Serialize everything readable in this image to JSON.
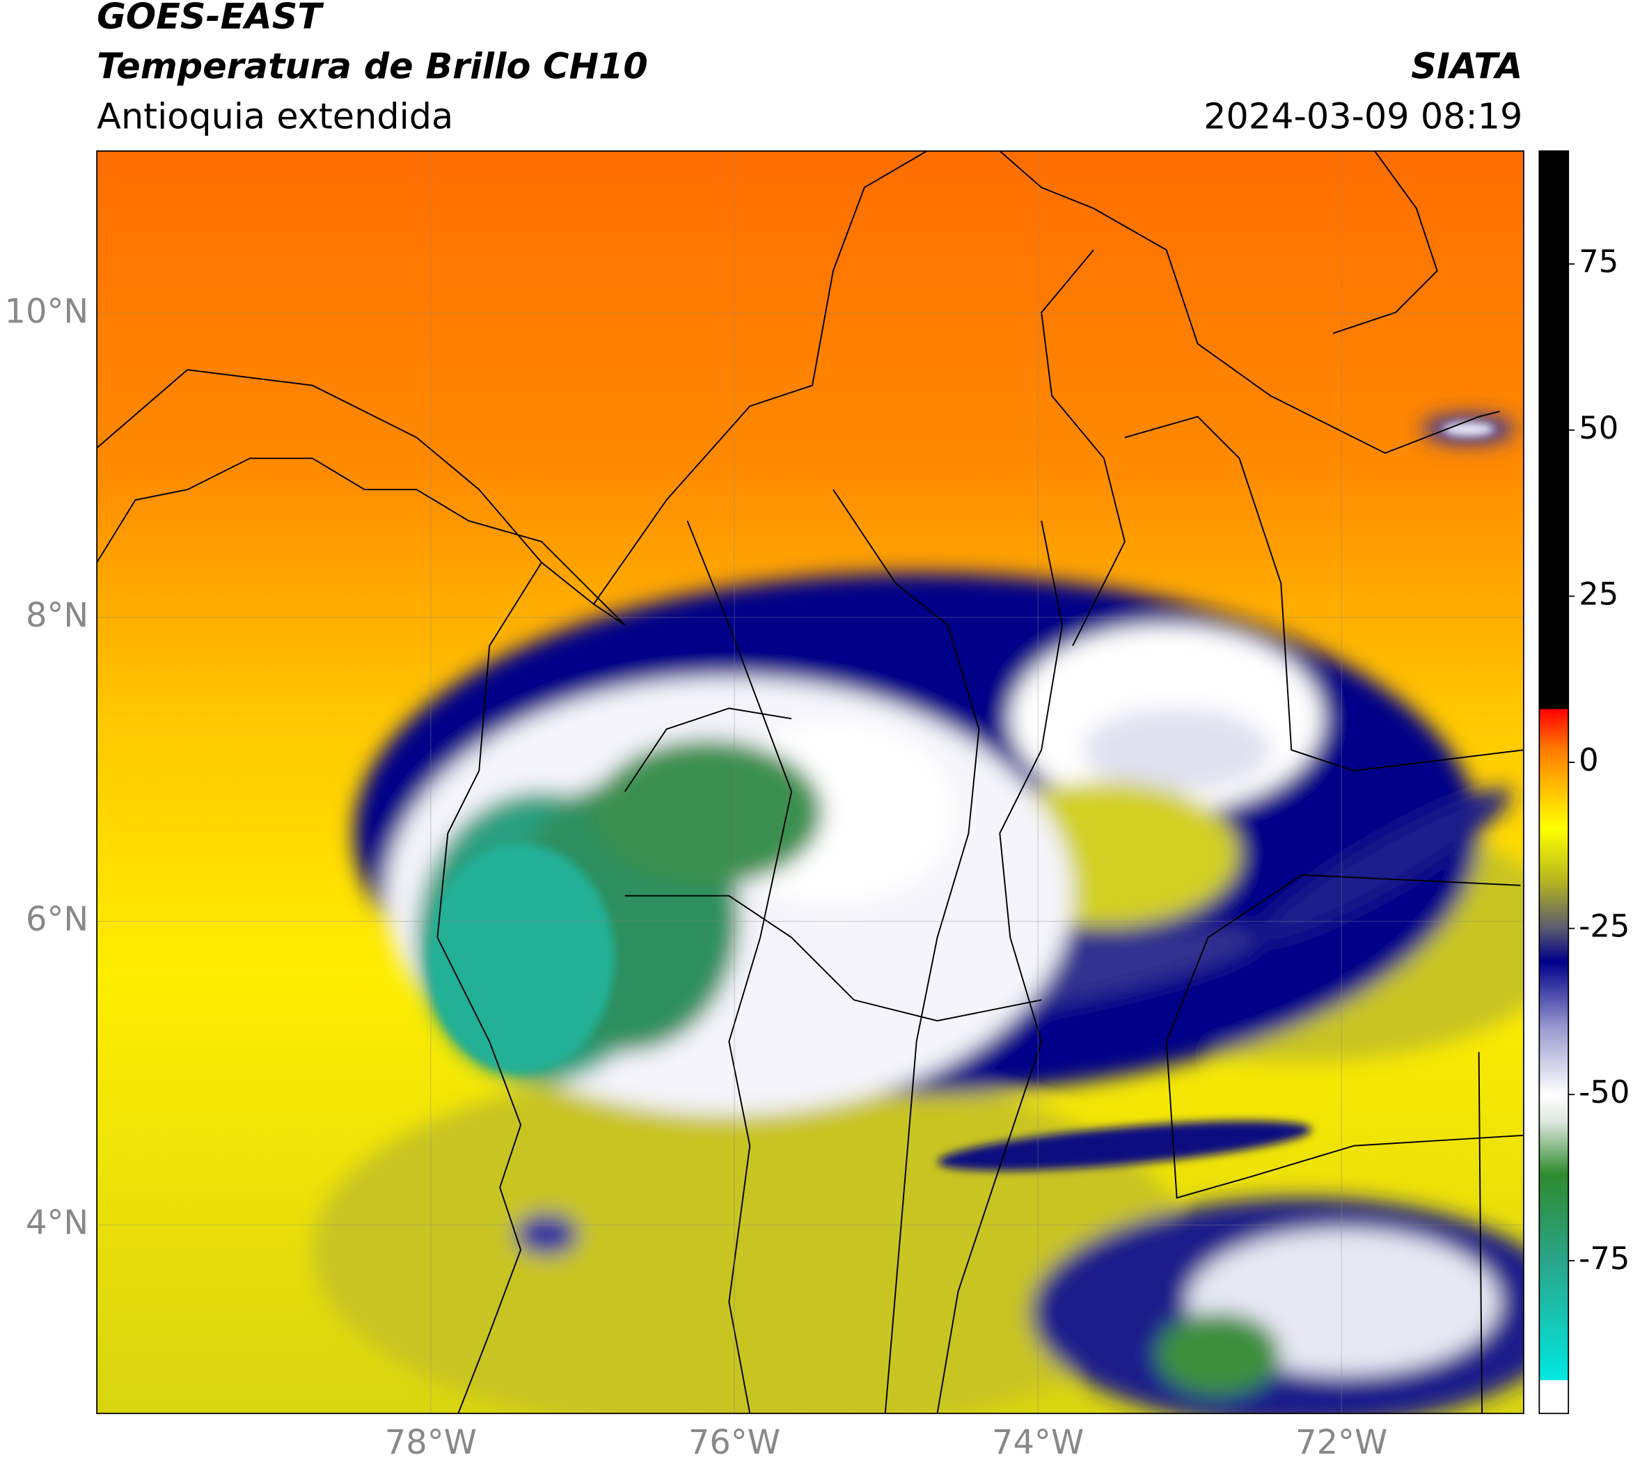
{
  "header": {
    "title": "GOES-EAST",
    "subtitle": "Temperatura de Brillo CH10",
    "region": "Antioquia extendida",
    "source": "SIATA",
    "timestamp": "2024-03-09 08:19"
  },
  "map": {
    "xlim": [
      -80.2,
      -70.8
    ],
    "ylim": [
      2.76,
      11.07
    ],
    "grid": true,
    "xticks": [
      {
        "value": -78,
        "label": "78°W"
      },
      {
        "value": -76,
        "label": "76°W"
      },
      {
        "value": -74,
        "label": "74°W"
      },
      {
        "value": -72,
        "label": "72°W"
      }
    ],
    "yticks": [
      {
        "value": 4,
        "label": "4°N"
      },
      {
        "value": 6,
        "label": "6°N"
      },
      {
        "value": 8,
        "label": "8°N"
      },
      {
        "value": 10,
        "label": "10°N"
      }
    ]
  },
  "colorbar": {
    "lim": [
      -98,
      92
    ],
    "ticks": [
      -75,
      -50,
      -25,
      0,
      25,
      50,
      75
    ],
    "stops": [
      {
        "value": -98,
        "color": "#ffffff"
      },
      {
        "value": -93,
        "color": "#ffffff"
      },
      {
        "value": -93,
        "color": "#00e8e0"
      },
      {
        "value": -75,
        "color": "#2aa58a"
      },
      {
        "value": -62,
        "color": "#2e8b2e"
      },
      {
        "value": -54,
        "color": "#dfe8df"
      },
      {
        "value": -50,
        "color": "#ffffff"
      },
      {
        "value": -40,
        "color": "#9a9ad0"
      },
      {
        "value": -30,
        "color": "#00008b"
      },
      {
        "value": -25,
        "color": "#5a5a70"
      },
      {
        "value": -18,
        "color": "#b4b420"
      },
      {
        "value": -10,
        "color": "#ffff00"
      },
      {
        "value": -4,
        "color": "#ffc000"
      },
      {
        "value": 2,
        "color": "#ff7a00"
      },
      {
        "value": 8,
        "color": "#ff0000"
      },
      {
        "value": 8,
        "color": "#000000"
      },
      {
        "value": 92,
        "color": "#000000"
      }
    ]
  }
}
